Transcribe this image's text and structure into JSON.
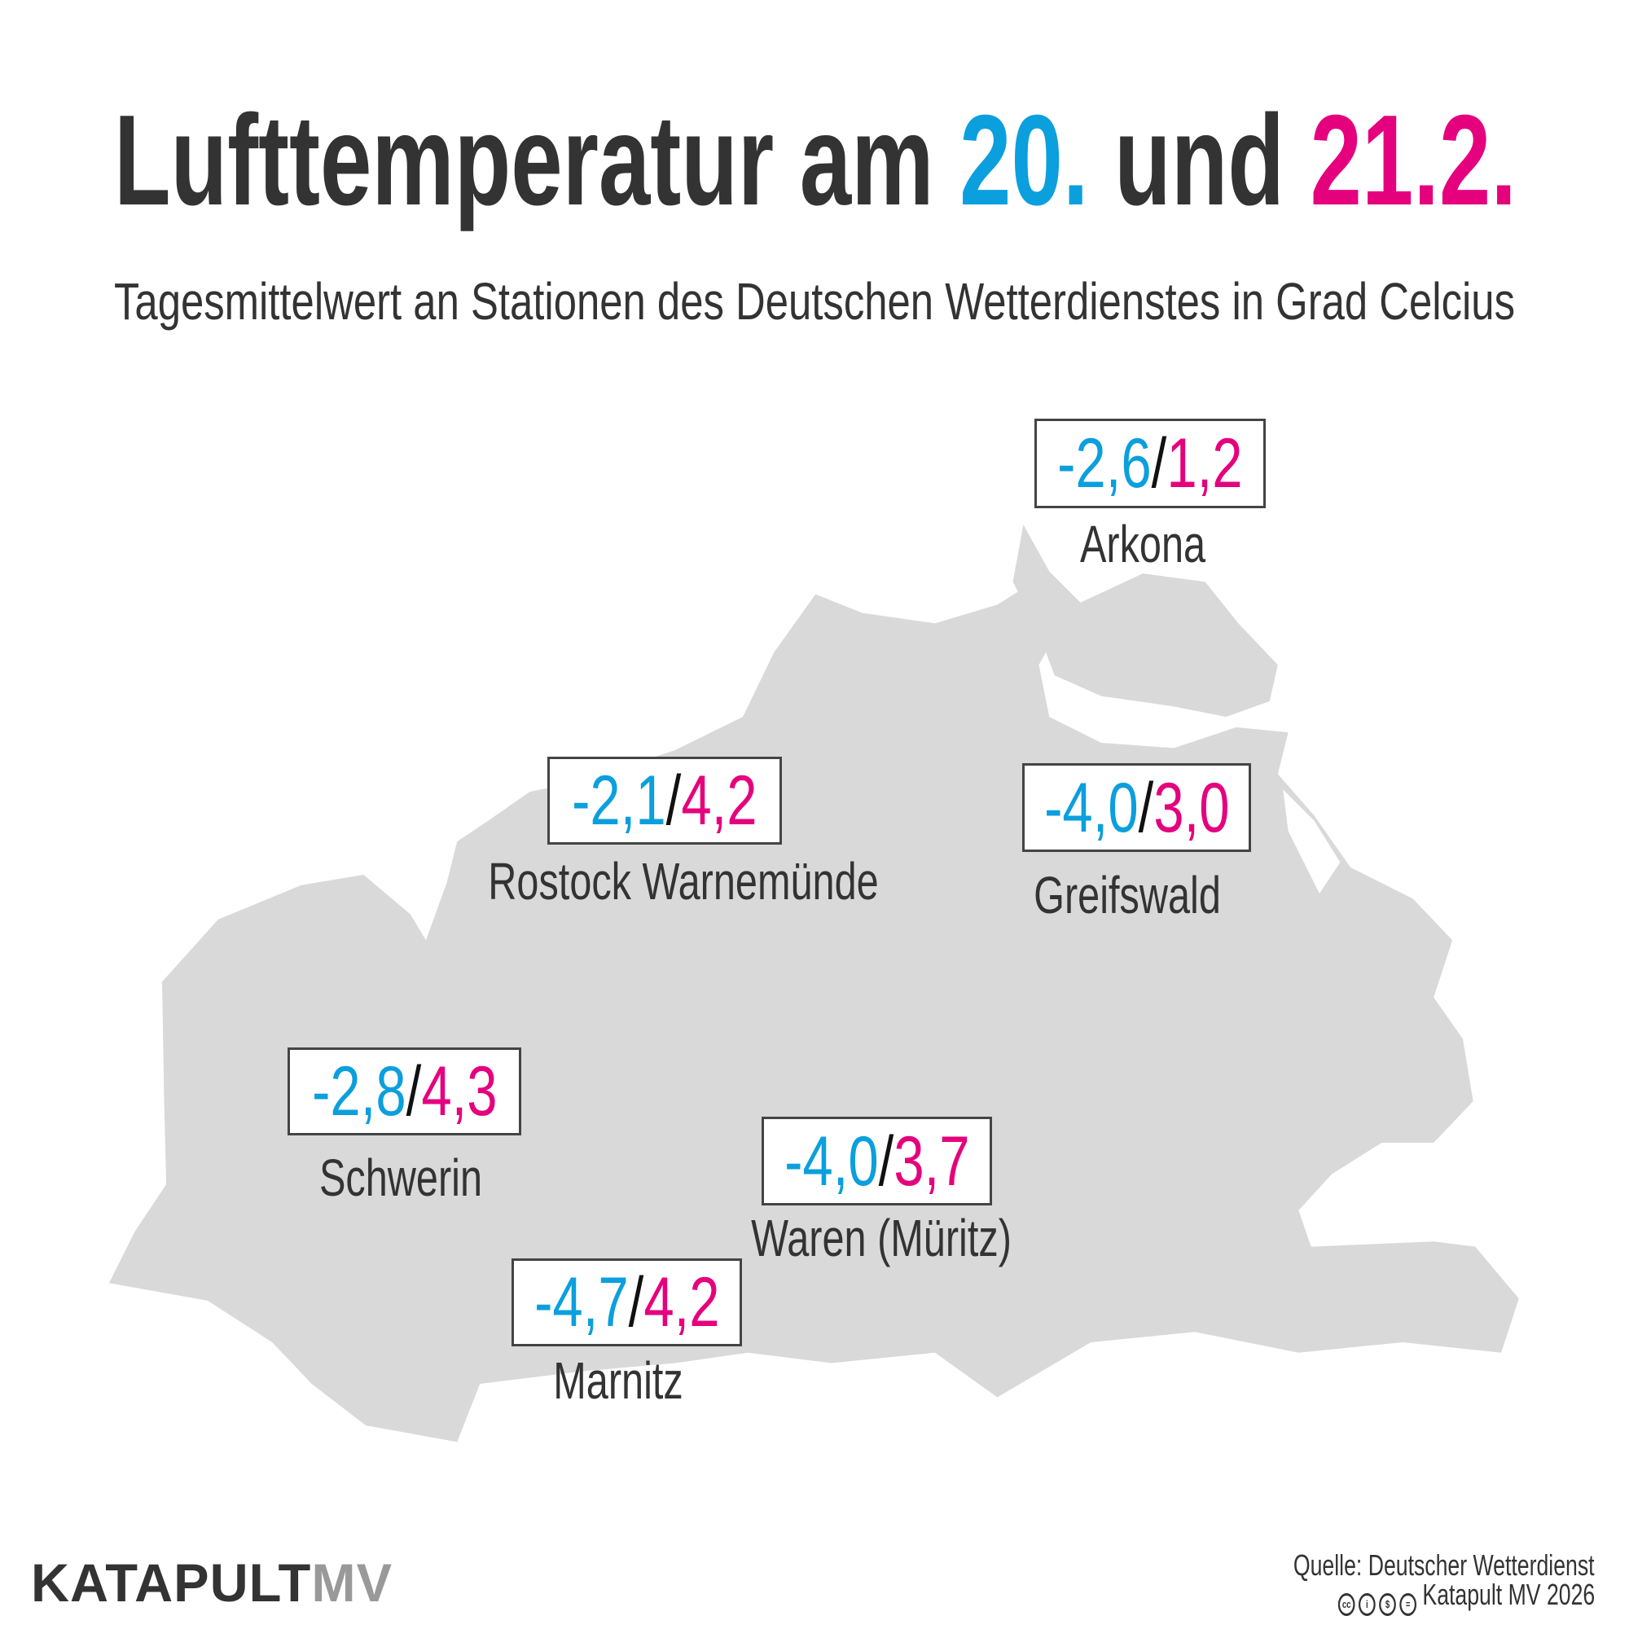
{
  "header": {
    "title_part1": "Lufttemperatur am ",
    "title_date1": "20.",
    "title_part2": " und ",
    "title_date2": "21.2.",
    "subtitle": "Tagesmittelwert an Stationen des Deutschen Wetterdienstes in Grad Celcius"
  },
  "colors": {
    "day1": "#0b9fdd",
    "day2": "#e5007d",
    "land": "#d9d9d9",
    "text": "#333333"
  },
  "stations": [
    {
      "name": "Arkona",
      "day1": "-2,6",
      "day2": "1,2"
    },
    {
      "name": "Rostock Warnemünde",
      "day1": "-2,1",
      "day2": "4,2"
    },
    {
      "name": "Greifswald",
      "day1": "-4,0",
      "day2": "3,0"
    },
    {
      "name": "Schwerin",
      "day1": "-2,8",
      "day2": "4,3"
    },
    {
      "name": "Waren (Müritz)",
      "day1": "-4,0",
      "day2": "3,7"
    },
    {
      "name": "Marnitz",
      "day1": "-4,7",
      "day2": "4,2"
    }
  ],
  "separator": "/",
  "footer": {
    "logo_main": "KATAPULT",
    "logo_suffix": "MV",
    "source": "Quelle: Deutscher Wetterdienst",
    "license_icons": [
      "cc-icon",
      "by-icon",
      "nc-icon",
      "nd-icon"
    ],
    "license_glyphs": [
      "cc",
      "i",
      "$",
      "="
    ],
    "copyright": "Katapult MV 2026"
  }
}
